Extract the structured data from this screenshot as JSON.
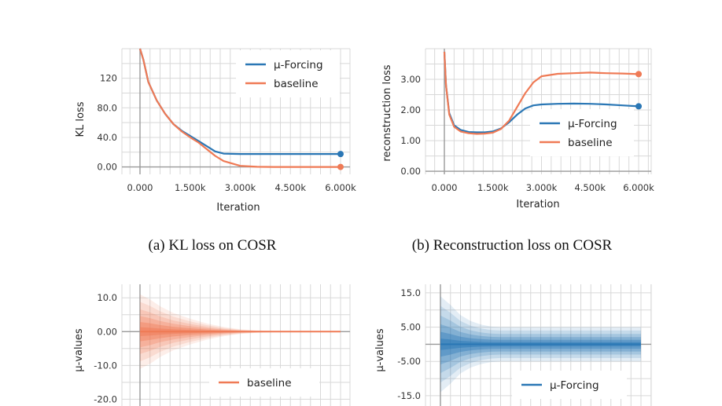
{
  "colors": {
    "mu_forcing": "#2a77b5",
    "baseline": "#ef7a55",
    "grid": "#d8d8d8",
    "axis": "#9a9a9a"
  },
  "captions": {
    "a": "(a)  KL loss on COSR",
    "b": "(b)  Reconstruction loss on COSR"
  },
  "chart_data": [
    {
      "type": "line",
      "ylabel": "KL loss",
      "xlabel": "Iteration",
      "xlim": [
        0,
        6000
      ],
      "ylim": [
        -10,
        160
      ],
      "x_ticks": [
        "0.000",
        "1.500k",
        "3.000k",
        "4.500k",
        "6.000k"
      ],
      "x_tick_values": [
        0,
        1500,
        3000,
        4500,
        6000
      ],
      "y_ticks": [
        "0.00",
        "40.0",
        "80.0",
        "120"
      ],
      "y_tick_values": [
        0,
        40,
        80,
        120
      ],
      "legend": "top-right",
      "grid": true,
      "x": [
        0,
        100,
        250,
        500,
        750,
        1000,
        1250,
        1500,
        1750,
        2000,
        2250,
        2500,
        3000,
        3500,
        4000,
        5000,
        6000
      ],
      "series": [
        {
          "name": "μ-Forcing",
          "color": "#2a77b5",
          "values": [
            165,
            145,
            115,
            90,
            72,
            58,
            49,
            42,
            35,
            28,
            21,
            18,
            17.5,
            17.5,
            17.5,
            17.5,
            17.5
          ]
        },
        {
          "name": "baseline",
          "color": "#ef7a55",
          "values": [
            165,
            145,
            115,
            90,
            72,
            58,
            48,
            40,
            33,
            24,
            15,
            8,
            1.5,
            0.2,
            0,
            0,
            0
          ]
        }
      ]
    },
    {
      "type": "line",
      "ylabel": "reconstruction loss",
      "xlabel": "Iteration",
      "xlim": [
        0,
        6000
      ],
      "ylim": [
        -0.1,
        4.0
      ],
      "x_ticks": [
        "0.000",
        "1.500k",
        "3.000k",
        "4.500k",
        "6.000k"
      ],
      "x_tick_values": [
        0,
        1500,
        3000,
        4500,
        6000
      ],
      "y_ticks": [
        "0.00",
        "1.00",
        "2.00",
        "3.00"
      ],
      "y_tick_values": [
        0,
        1,
        2,
        3
      ],
      "legend": "bottom-right",
      "grid": true,
      "x": [
        0,
        50,
        150,
        300,
        500,
        750,
        1000,
        1250,
        1500,
        1750,
        2000,
        2250,
        2500,
        2750,
        3000,
        3500,
        4000,
        4500,
        5000,
        5500,
        6000
      ],
      "series": [
        {
          "name": "μ-Forcing",
          "color": "#2a77b5",
          "values": [
            3.9,
            2.8,
            1.9,
            1.5,
            1.35,
            1.28,
            1.27,
            1.27,
            1.3,
            1.4,
            1.6,
            1.85,
            2.05,
            2.15,
            2.18,
            2.2,
            2.21,
            2.2,
            2.18,
            2.15,
            2.12
          ]
        },
        {
          "name": "baseline",
          "color": "#ef7a55",
          "values": [
            3.9,
            2.8,
            1.85,
            1.45,
            1.3,
            1.24,
            1.22,
            1.23,
            1.26,
            1.38,
            1.65,
            2.1,
            2.55,
            2.9,
            3.1,
            3.18,
            3.2,
            3.22,
            3.2,
            3.19,
            3.17
          ]
        }
      ]
    },
    {
      "type": "area",
      "ylabel": "μ-values",
      "xlim": [
        0,
        6000
      ],
      "ylim": [
        -22,
        14
      ],
      "y_ticks": [
        "-20.0",
        "-10.0",
        "0.00",
        "10.0"
      ],
      "y_tick_values": [
        -20,
        -10,
        0,
        10
      ],
      "legend": "bottom-right",
      "grid": true,
      "x": [
        0,
        300,
        600,
        1000,
        1500,
        2000,
        2500,
        3000,
        3500,
        4000,
        5000,
        6000
      ],
      "series": [
        {
          "name": "baseline",
          "color": "#ef7a55",
          "center": [
            0,
            0,
            0,
            0,
            0,
            0,
            0,
            0,
            0,
            0,
            0,
            0
          ],
          "spread": [
            11,
            9.5,
            7.5,
            5.5,
            3.8,
            2.4,
            1.4,
            0.7,
            0.35,
            0.2,
            0.12,
            0.1
          ]
        }
      ]
    },
    {
      "type": "area",
      "ylabel": "μ-values",
      "xlim": [
        0,
        6000
      ],
      "ylim": [
        -18,
        17.5
      ],
      "y_ticks": [
        "-15.0",
        "-5.00",
        "5.00",
        "15.0"
      ],
      "y_tick_values": [
        -15,
        -5,
        5,
        15
      ],
      "legend": "bottom-right",
      "grid": true,
      "x": [
        0,
        300,
        600,
        900,
        1200,
        1500,
        1800,
        2000,
        3000,
        4000,
        5000,
        6000
      ],
      "series": [
        {
          "name": "μ-Forcing",
          "color": "#2a77b5",
          "center": [
            0,
            0,
            0,
            0,
            0,
            0,
            0,
            0,
            0,
            0,
            0,
            0
          ],
          "spread": [
            14,
            11.5,
            8.5,
            6.8,
            5.8,
            5.2,
            5.0,
            5.0,
            5.0,
            5.0,
            5.0,
            5.0
          ]
        }
      ]
    }
  ]
}
